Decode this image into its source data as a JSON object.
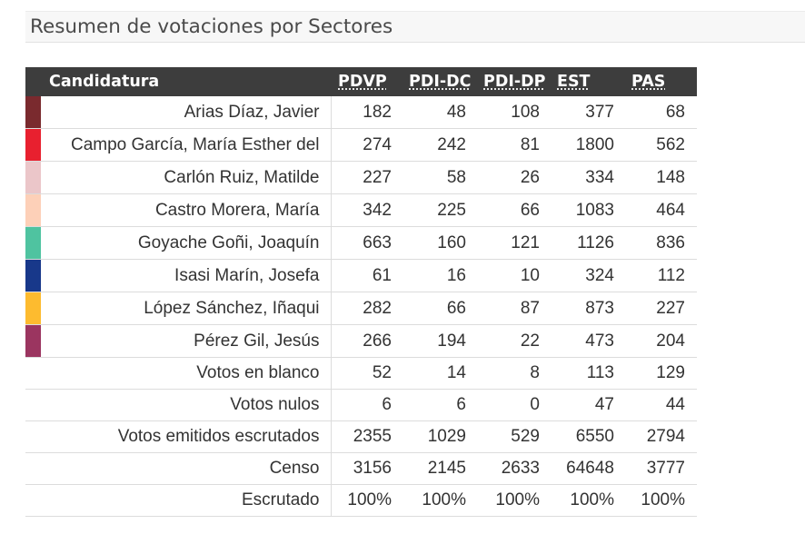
{
  "page": {
    "title": "Resumen de votaciones por Sectores"
  },
  "table": {
    "candidate_header": "Candidatura",
    "sector_headers": [
      "PDVP",
      "PDI-DC",
      "PDI-DP",
      "EST",
      "PAS"
    ],
    "candidates": [
      {
        "name": "Arias Díaz, Javier",
        "color": "#7a2a2e",
        "values": [
          "182",
          "48",
          "108",
          "377",
          "68"
        ]
      },
      {
        "name": "Campo García, María Esther del",
        "color": "#e8202f",
        "values": [
          "274",
          "242",
          "81",
          "1800",
          "562"
        ]
      },
      {
        "name": "Carlón Ruiz, Matilde",
        "color": "#ebc6c9",
        "values": [
          "227",
          "58",
          "26",
          "334",
          "148"
        ]
      },
      {
        "name": "Castro Morera, María",
        "color": "#fdd0b8",
        "values": [
          "342",
          "225",
          "66",
          "1083",
          "464"
        ]
      },
      {
        "name": "Goyache Goñi, Joaquín",
        "color": "#4fc3a0",
        "values": [
          "663",
          "160",
          "121",
          "1126",
          "836"
        ]
      },
      {
        "name": "Isasi Marín, Josefa",
        "color": "#18388a",
        "values": [
          "61",
          "16",
          "10",
          "324",
          "112"
        ]
      },
      {
        "name": "López Sánchez, Iñaqui",
        "color": "#fdbb2f",
        "values": [
          "282",
          "66",
          "87",
          "873",
          "227"
        ]
      },
      {
        "name": "Pérez Gil, Jesús",
        "color": "#9b3560",
        "values": [
          "266",
          "194",
          "22",
          "473",
          "204"
        ]
      }
    ],
    "summary_rows": [
      {
        "name": "Votos en blanco",
        "values": [
          "52",
          "14",
          "8",
          "113",
          "129"
        ]
      },
      {
        "name": "Votos nulos",
        "values": [
          "6",
          "6",
          "0",
          "47",
          "44"
        ]
      },
      {
        "name": "Votos emitidos escrutados",
        "values": [
          "2355",
          "1029",
          "529",
          "6550",
          "2794"
        ]
      },
      {
        "name": "Censo",
        "values": [
          "3156",
          "2145",
          "2633",
          "64648",
          "3777"
        ]
      },
      {
        "name": "Escrutado",
        "values": [
          "100%",
          "100%",
          "100%",
          "100%",
          "100%"
        ]
      }
    ]
  }
}
